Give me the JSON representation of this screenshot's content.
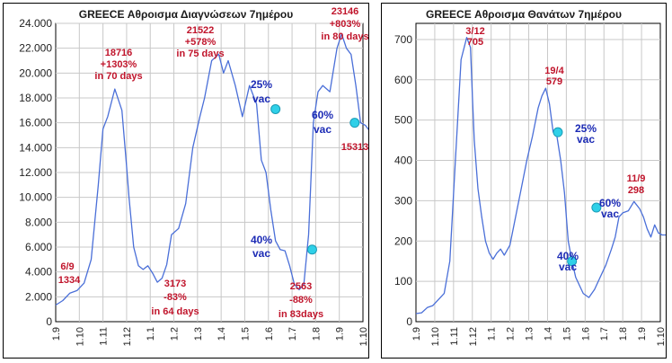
{
  "colors": {
    "line": "#4a6fd8",
    "annotation_red": "#c0142b",
    "annotation_blue": "#1c2bb5",
    "marker": "#2fd0e8",
    "grid": "#c8c8c8",
    "plot_bg": "#ffffff"
  },
  "chart_data": [
    {
      "type": "line",
      "title": "GREECE  Αθροισμα Διαγνώσεων 7ημέρου",
      "xlabel": "",
      "ylabel": "",
      "x_tick_labels": [
        "1.9",
        "1.10",
        "1.11",
        "1.12",
        "1.1",
        "1.2",
        "1.3",
        "1.4",
        "1.5",
        "1.6",
        "1.7",
        "1.8",
        "1.9",
        "1.10"
      ],
      "y_tick_labels": [
        "0",
        "2.000",
        "4.000",
        "6.000",
        "8.000",
        "10.000",
        "12.000",
        "14.000",
        "16.000",
        "18.000",
        "20.000",
        "22.000",
        "24.000"
      ],
      "ylim": [
        0,
        24000
      ],
      "grid": true,
      "series": [
        {
          "x": [
            0,
            0.3,
            0.6,
            0.9,
            1.2,
            1.5,
            1.8,
            2.0,
            2.2,
            2.5,
            2.8,
            3.0,
            3.1,
            3.3,
            3.5,
            3.7,
            3.9,
            4.1,
            4.3,
            4.5,
            4.7,
            4.9,
            5.2,
            5.5,
            5.8,
            6.1,
            6.3,
            6.6,
            6.9,
            7.1,
            7.3,
            7.6,
            7.9,
            8.2,
            8.5,
            8.7,
            8.9,
            9.1,
            9.3,
            9.5,
            9.7,
            9.9,
            10.1,
            10.3,
            10.5,
            10.7,
            10.9,
            11.1,
            11.3,
            11.6,
            11.9,
            12.1,
            12.3,
            12.5,
            12.7,
            12.9,
            13.1,
            13.3,
            13.5
          ],
          "y": [
            1334,
            1700,
            2300,
            2500,
            3100,
            5000,
            11000,
            15500,
            16500,
            18716,
            17000,
            12500,
            10000,
            6000,
            4500,
            4200,
            4500,
            3900,
            3173,
            3500,
            4600,
            7000,
            7500,
            9500,
            14000,
            16500,
            18000,
            21000,
            21522,
            20000,
            21000,
            19000,
            16500,
            19000,
            17500,
            13000,
            12000,
            9000,
            6500,
            5800,
            5700,
            4500,
            3000,
            2563,
            3000,
            7000,
            16000,
            18500,
            19000,
            18500,
            22000,
            23146,
            22000,
            21500,
            19000,
            16000,
            15800,
            15313,
            15100
          ]
        }
      ],
      "annotations": [
        {
          "text": "18716",
          "color": "red"
        },
        {
          "text": "+1303%",
          "color": "red"
        },
        {
          "text": "in 70 days",
          "color": "red"
        },
        {
          "text": "21522",
          "color": "red"
        },
        {
          "text": "+578%",
          "color": "red"
        },
        {
          "text": "in 75 days",
          "color": "red"
        },
        {
          "text": "23146",
          "color": "red"
        },
        {
          "text": "+803%",
          "color": "red"
        },
        {
          "text": "in 80 days",
          "color": "red"
        },
        {
          "text": "6/9",
          "color": "red"
        },
        {
          "text": "1334",
          "color": "red"
        },
        {
          "text": "3173",
          "color": "red"
        },
        {
          "text": "-83%",
          "color": "red"
        },
        {
          "text": "in 64 days",
          "color": "red"
        },
        {
          "text": "2563",
          "color": "red"
        },
        {
          "text": "-88%",
          "color": "red"
        },
        {
          "text": "in 83days",
          "color": "red"
        },
        {
          "text": "15313",
          "color": "red"
        },
        {
          "text": "25%",
          "color": "blue"
        },
        {
          "text": "vac",
          "color": "blue"
        },
        {
          "text": "40%",
          "color": "blue"
        },
        {
          "text": "vac",
          "color": "blue"
        },
        {
          "text": "60%",
          "color": "blue"
        },
        {
          "text": "vac",
          "color": "blue"
        }
      ],
      "markers": [
        {
          "x": 9.3,
          "y": 17100
        },
        {
          "x": 10.85,
          "y": 5800
        },
        {
          "x": 12.65,
          "y": 16000
        }
      ]
    },
    {
      "type": "line",
      "title": "GREECE  Αθροισμα Θανάτων 7ημέρου",
      "xlabel": "",
      "ylabel": "",
      "x_tick_labels": [
        "1.9",
        "1.10",
        "1.11",
        "1.12",
        "1.1",
        "1.2",
        "1.3",
        "1.4",
        "1.5",
        "1.6",
        "1.7",
        "1.8",
        "1.9",
        "1.10"
      ],
      "y_tick_labels": [
        "0",
        "100",
        "200",
        "300",
        "400",
        "500",
        "600",
        "700"
      ],
      "ylim": [
        0,
        740
      ],
      "grid": true,
      "series": [
        {
          "x": [
            0,
            0.3,
            0.6,
            0.9,
            1.2,
            1.5,
            1.8,
            2.1,
            2.4,
            2.7,
            2.9,
            3.0,
            3.1,
            3.3,
            3.5,
            3.7,
            3.9,
            4.1,
            4.3,
            4.5,
            4.7,
            5.0,
            5.3,
            5.6,
            5.9,
            6.2,
            6.5,
            6.7,
            6.9,
            7.1,
            7.3,
            7.5,
            7.7,
            7.9,
            8.1,
            8.3,
            8.5,
            8.7,
            8.9,
            9.2,
            9.5,
            9.8,
            10.1,
            10.4,
            10.6,
            10.8,
            11.0,
            11.3,
            11.6,
            11.9,
            12.1,
            12.3,
            12.5,
            12.7,
            12.9,
            13.1,
            13.3
          ],
          "y": [
            20,
            22,
            35,
            40,
            55,
            70,
            150,
            400,
            650,
            705,
            680,
            560,
            450,
            330,
            260,
            200,
            170,
            155,
            170,
            180,
            165,
            190,
            260,
            330,
            400,
            460,
            530,
            560,
            579,
            540,
            470,
            460,
            400,
            320,
            200,
            150,
            110,
            90,
            70,
            60,
            80,
            110,
            140,
            180,
            210,
            260,
            270,
            275,
            298,
            280,
            260,
            230,
            210,
            240,
            220,
            215,
            215
          ]
        }
      ],
      "annotations": [
        {
          "text": "3/12",
          "color": "red"
        },
        {
          "text": "705",
          "color": "red"
        },
        {
          "text": "19/4",
          "color": "red"
        },
        {
          "text": "579",
          "color": "red"
        },
        {
          "text": "11/9",
          "color": "red"
        },
        {
          "text": "298",
          "color": "red"
        },
        {
          "text": "25%",
          "color": "blue"
        },
        {
          "text": "vac",
          "color": "blue"
        },
        {
          "text": "40%",
          "color": "blue"
        },
        {
          "text": "vac",
          "color": "blue"
        },
        {
          "text": "60%",
          "color": "blue"
        },
        {
          "text": "vac",
          "color": "blue"
        }
      ],
      "markers": [
        {
          "x": 7.55,
          "y": 470
        },
        {
          "x": 8.3,
          "y": 150
        },
        {
          "x": 9.6,
          "y": 283
        }
      ]
    }
  ]
}
